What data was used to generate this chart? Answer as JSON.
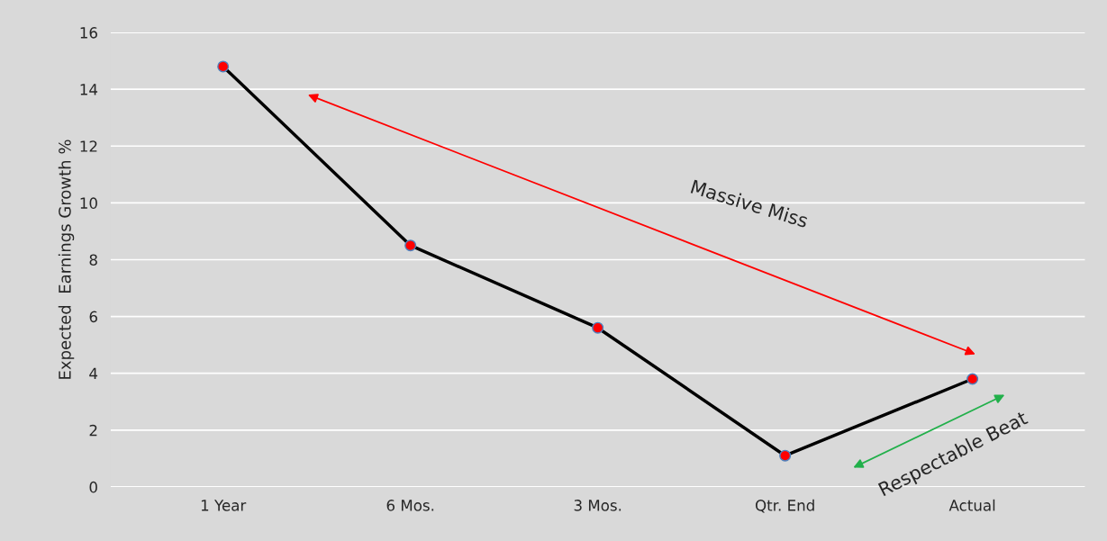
{
  "chart_data": {
    "type": "line",
    "categories": [
      "1 Year",
      "6 Mos.",
      "3 Mos.",
      "Qtr. End",
      "Actual"
    ],
    "series": [
      {
        "color": "#000000",
        "colors": [
          "#ff0000",
          "#ff0000",
          "#ff0000",
          "#ff0000",
          "#ff0000"
        ],
        "values": [
          14.8,
          8.5,
          5.6,
          1.1,
          3.8
        ]
      }
    ],
    "ylabel": "Expected  Earnings Growth %",
    "ylim": [
      0,
      16
    ],
    "yticks": [
      0,
      2,
      4,
      6,
      8,
      10,
      12,
      14,
      16
    ],
    "grid": "y",
    "marker": "circle",
    "line_style": "solid",
    "annotations": [
      "Massive Miss",
      "Respectable Beat"
    ]
  }
}
